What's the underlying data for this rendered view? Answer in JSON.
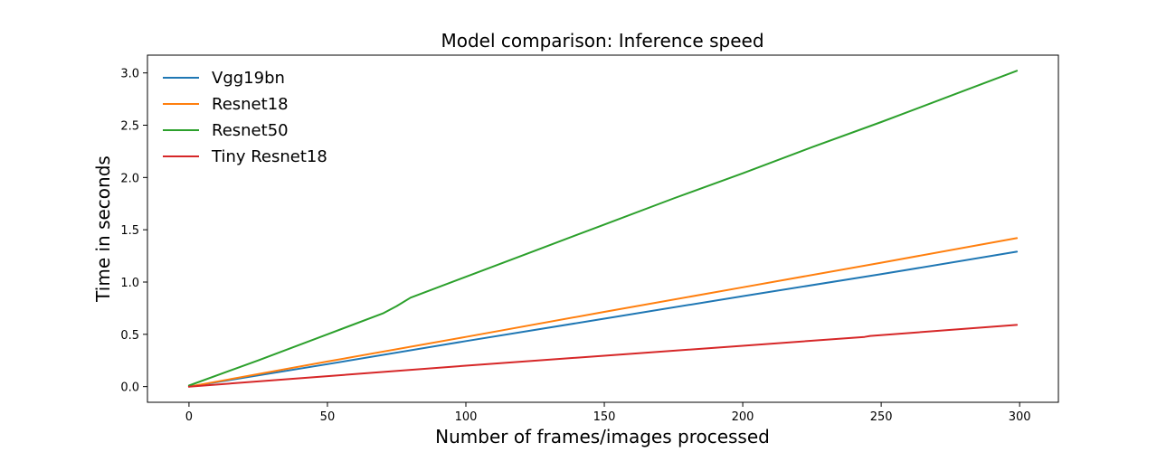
{
  "chart_data": {
    "type": "line",
    "title": "Model comparison: Inference speed",
    "xlabel": "Number of frames/images processed",
    "ylabel": "Time in seconds",
    "xlim": [
      -15,
      314
    ],
    "ylim": [
      -0.15,
      3.17
    ],
    "xticks": [
      0,
      50,
      100,
      150,
      200,
      250,
      300
    ],
    "yticks": [
      0.0,
      0.5,
      1.0,
      1.5,
      2.0,
      2.5,
      3.0
    ],
    "xtick_labels": [
      "0",
      "50",
      "100",
      "150",
      "200",
      "250",
      "300"
    ],
    "ytick_labels": [
      "0.0",
      "0.5",
      "1.0",
      "1.5",
      "2.0",
      "2.5",
      "3.0"
    ],
    "grid": false,
    "legend_position": "top-left",
    "series": [
      {
        "name": "Vgg19bn",
        "color": "#1f77b4",
        "x": [
          0,
          50,
          100,
          150,
          200,
          250,
          299
        ],
        "y": [
          0.0,
          0.215,
          0.435,
          0.65,
          0.865,
          1.075,
          1.29
        ]
      },
      {
        "name": "Resnet18",
        "color": "#ff7f0e",
        "x": [
          0,
          50,
          100,
          150,
          200,
          250,
          299
        ],
        "y": [
          0.0,
          0.24,
          0.475,
          0.715,
          0.95,
          1.185,
          1.42
        ]
      },
      {
        "name": "Resnet50",
        "color": "#2ca02c",
        "x": [
          0,
          25,
          50,
          70,
          75,
          80,
          100,
          125,
          150,
          175,
          200,
          225,
          250,
          275,
          299
        ],
        "y": [
          0.01,
          0.25,
          0.5,
          0.7,
          0.77,
          0.85,
          1.05,
          1.3,
          1.55,
          1.8,
          2.04,
          2.29,
          2.53,
          2.78,
          3.02
        ]
      },
      {
        "name": "Tiny Resnet18",
        "color": "#d62728",
        "x": [
          0,
          50,
          100,
          150,
          200,
          244,
          246,
          299
        ],
        "y": [
          0.0,
          0.1,
          0.2,
          0.295,
          0.39,
          0.475,
          0.485,
          0.59
        ]
      }
    ]
  }
}
